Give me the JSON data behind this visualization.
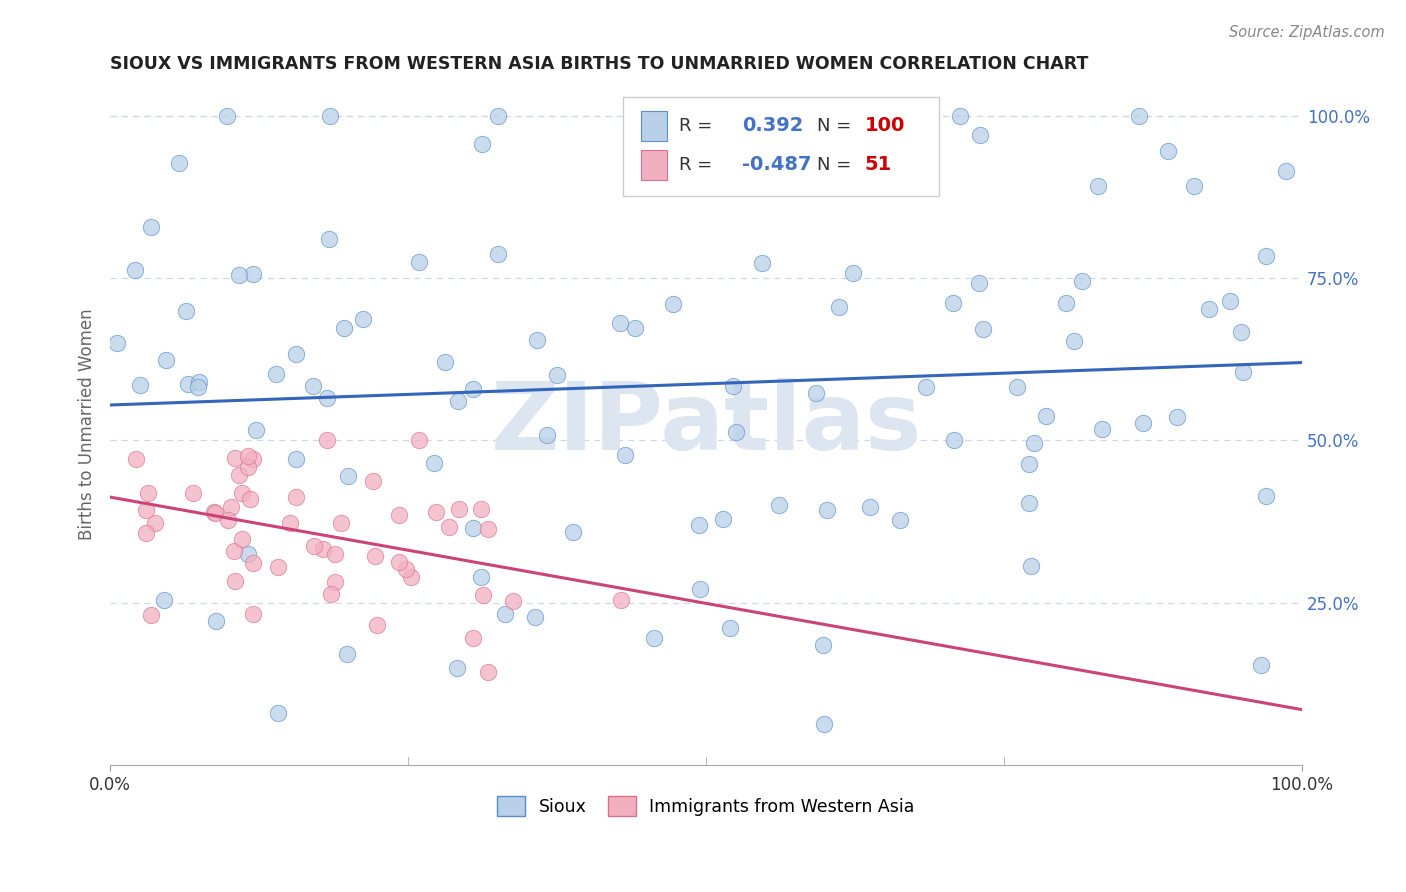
{
  "title": "SIOUX VS IMMIGRANTS FROM WESTERN ASIA BIRTHS TO UNMARRIED WOMEN CORRELATION CHART",
  "source": "Source: ZipAtlas.com",
  "ylabel": "Births to Unmarried Women",
  "sioux_color": "#b8d0e8",
  "immigrants_color": "#f2afc0",
  "sioux_edge_color": "#5b8ec9",
  "immigrants_edge_color": "#d97090",
  "sioux_line_color": "#3366bb",
  "immigrants_line_color": "#cc4477",
  "background_color": "#ffffff",
  "grid_color": "#d0d8e8",
  "watermark_color": "#dde5f0",
  "ytick_color": "#4472c4",
  "xtick_color": "#333333",
  "title_color": "#222222",
  "source_color": "#888888",
  "ylabel_color": "#666666",
  "legend_r_color": "#4472c4",
  "legend_n_color": "#cc0000",
  "ytick_labels": [
    "100.0%",
    "75.0%",
    "50.0%",
    "25.0%"
  ],
  "ytick_values": [
    1.0,
    0.75,
    0.5,
    0.25
  ],
  "xlim": [
    0.0,
    1.0
  ],
  "ylim": [
    0.0,
    1.05
  ],
  "sioux_R": 0.392,
  "sioux_N": 100,
  "immigrants_R": -0.487,
  "immigrants_N": 51,
  "sioux_seed": 42,
  "immigrants_seed": 7,
  "dot_size": 140,
  "dot_alpha": 0.75,
  "line_width": 2.2
}
